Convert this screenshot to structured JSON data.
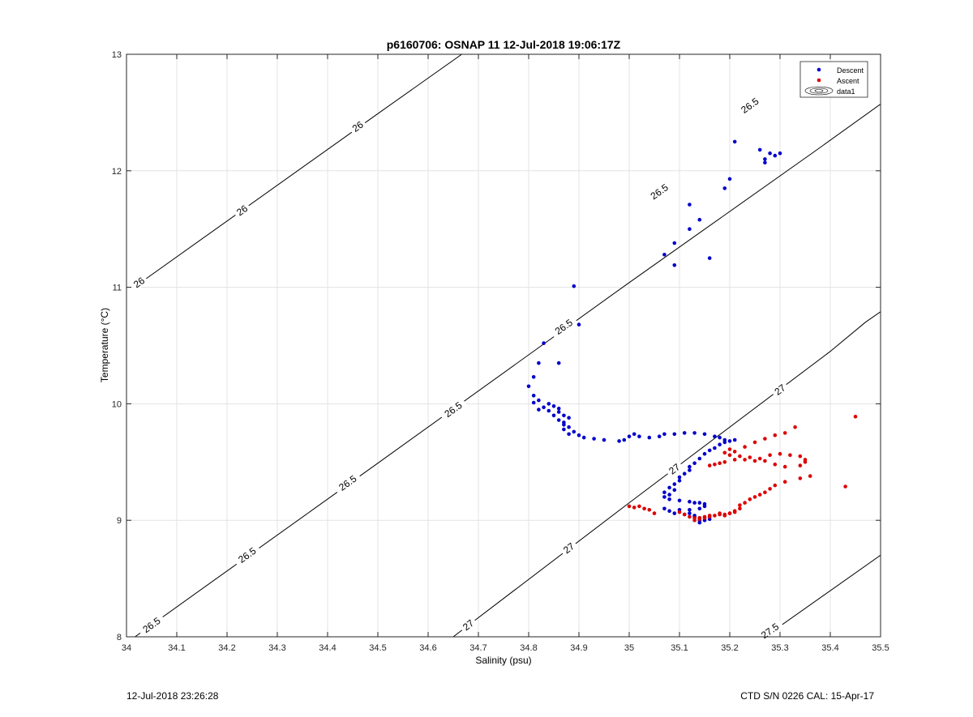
{
  "chart_data": {
    "type": "scatter",
    "title": "p6160706: OSNAP 11 12-Jul-2018 19:06:17Z",
    "xlabel": "Salinity (psu)",
    "ylabel": "Temperature (°C)",
    "xlim": [
      34,
      35.5
    ],
    "ylim": [
      8,
      13
    ],
    "xticks": [
      "34",
      "34.1",
      "34.2",
      "34.3",
      "34.4",
      "34.5",
      "34.6",
      "34.7",
      "34.8",
      "34.9",
      "35",
      "35.1",
      "35.2",
      "35.3",
      "35.4",
      "35.5"
    ],
    "yticks": [
      "8",
      "9",
      "10",
      "11",
      "12",
      "13"
    ],
    "grid": true,
    "legend_position": "top-right",
    "legend": [
      "Descent",
      "Ascent",
      "data1"
    ],
    "series": [
      {
        "name": "Descent",
        "color": "#0000cc",
        "points": [
          [
            35.21,
            12.25
          ],
          [
            35.26,
            12.18
          ],
          [
            35.28,
            12.15
          ],
          [
            35.3,
            12.15
          ],
          [
            35.29,
            12.13
          ],
          [
            35.27,
            12.1
          ],
          [
            35.27,
            12.07
          ],
          [
            35.2,
            11.93
          ],
          [
            35.19,
            11.85
          ],
          [
            35.12,
            11.71
          ],
          [
            35.14,
            11.58
          ],
          [
            35.12,
            11.5
          ],
          [
            35.09,
            11.38
          ],
          [
            35.07,
            11.28
          ],
          [
            35.16,
            11.25
          ],
          [
            35.09,
            11.19
          ],
          [
            34.89,
            11.01
          ],
          [
            34.9,
            10.68
          ],
          [
            34.83,
            10.52
          ],
          [
            34.82,
            10.35
          ],
          [
            34.86,
            10.35
          ],
          [
            34.81,
            10.23
          ],
          [
            34.8,
            10.15
          ],
          [
            34.81,
            10.07
          ],
          [
            34.82,
            10.03
          ],
          [
            34.81,
            10.01
          ],
          [
            34.84,
            10.0
          ],
          [
            34.83,
            9.97
          ],
          [
            34.85,
            9.98
          ],
          [
            34.86,
            9.96
          ],
          [
            34.82,
            9.95
          ],
          [
            34.84,
            9.94
          ],
          [
            34.86,
            9.93
          ],
          [
            34.87,
            9.9
          ],
          [
            34.85,
            9.9
          ],
          [
            34.88,
            9.88
          ],
          [
            34.86,
            9.86
          ],
          [
            34.87,
            9.84
          ],
          [
            34.87,
            9.82
          ],
          [
            34.88,
            9.8
          ],
          [
            34.87,
            9.78
          ],
          [
            34.89,
            9.76
          ],
          [
            34.88,
            9.74
          ],
          [
            34.9,
            9.73
          ],
          [
            34.91,
            9.71
          ],
          [
            34.93,
            9.7
          ],
          [
            34.95,
            9.69
          ],
          [
            34.98,
            9.68
          ],
          [
            34.99,
            9.69
          ],
          [
            35.0,
            9.72
          ],
          [
            35.01,
            9.74
          ],
          [
            35.02,
            9.72
          ],
          [
            35.04,
            9.71
          ],
          [
            35.06,
            9.72
          ],
          [
            35.07,
            9.74
          ],
          [
            35.09,
            9.74
          ],
          [
            35.11,
            9.75
          ],
          [
            35.13,
            9.75
          ],
          [
            35.15,
            9.74
          ],
          [
            35.17,
            9.72
          ],
          [
            35.18,
            9.71
          ],
          [
            35.19,
            9.69
          ],
          [
            35.2,
            9.68
          ],
          [
            35.21,
            9.69
          ],
          [
            35.19,
            9.67
          ],
          [
            35.18,
            9.65
          ],
          [
            35.17,
            9.62
          ],
          [
            35.16,
            9.6
          ],
          [
            35.15,
            9.57
          ],
          [
            35.14,
            9.53
          ],
          [
            35.13,
            9.49
          ],
          [
            35.12,
            9.46
          ],
          [
            35.12,
            9.43
          ],
          [
            35.11,
            9.4
          ],
          [
            35.1,
            9.37
          ],
          [
            35.1,
            9.34
          ],
          [
            35.09,
            9.31
          ],
          [
            35.08,
            9.28
          ],
          [
            35.09,
            9.26
          ],
          [
            35.07,
            9.24
          ],
          [
            35.08,
            9.22
          ],
          [
            35.07,
            9.2
          ],
          [
            35.08,
            9.18
          ],
          [
            35.1,
            9.17
          ],
          [
            35.12,
            9.16
          ],
          [
            35.13,
            9.15
          ],
          [
            35.14,
            9.15
          ],
          [
            35.15,
            9.14
          ],
          [
            35.15,
            9.12
          ],
          [
            35.14,
            9.1
          ],
          [
            35.12,
            9.09
          ],
          [
            35.1,
            9.09
          ],
          [
            35.08,
            9.08
          ],
          [
            35.07,
            9.1
          ],
          [
            35.09,
            9.06
          ],
          [
            35.11,
            9.05
          ],
          [
            35.13,
            9.04
          ],
          [
            35.14,
            9.02
          ],
          [
            35.14,
            9.0
          ],
          [
            35.14,
            8.98
          ],
          [
            35.15,
            9.0
          ],
          [
            35.16,
            9.01
          ],
          [
            35.13,
            9.03
          ],
          [
            35.12,
            9.06
          ]
        ]
      },
      {
        "name": "Ascent",
        "color": "#dd0000",
        "points": [
          [
            35.45,
            9.89
          ],
          [
            35.33,
            9.8
          ],
          [
            35.31,
            9.75
          ],
          [
            35.29,
            9.73
          ],
          [
            35.27,
            9.7
          ],
          [
            35.25,
            9.67
          ],
          [
            35.23,
            9.63
          ],
          [
            35.2,
            9.61
          ],
          [
            35.21,
            9.59
          ],
          [
            35.19,
            9.58
          ],
          [
            35.2,
            9.56
          ],
          [
            35.22,
            9.55
          ],
          [
            35.24,
            9.54
          ],
          [
            35.26,
            9.53
          ],
          [
            35.28,
            9.56
          ],
          [
            35.3,
            9.57
          ],
          [
            35.32,
            9.56
          ],
          [
            35.34,
            9.55
          ],
          [
            35.35,
            9.52
          ],
          [
            35.35,
            9.5
          ],
          [
            35.34,
            9.47
          ],
          [
            35.31,
            9.46
          ],
          [
            35.29,
            9.48
          ],
          [
            35.27,
            9.51
          ],
          [
            35.25,
            9.51
          ],
          [
            35.23,
            9.52
          ],
          [
            35.21,
            9.52
          ],
          [
            35.19,
            9.5
          ],
          [
            35.18,
            9.49
          ],
          [
            35.17,
            9.48
          ],
          [
            35.16,
            9.47
          ],
          [
            35.36,
            9.38
          ],
          [
            35.34,
            9.36
          ],
          [
            35.31,
            9.33
          ],
          [
            35.29,
            9.3
          ],
          [
            35.28,
            9.27
          ],
          [
            35.27,
            9.24
          ],
          [
            35.26,
            9.22
          ],
          [
            35.25,
            9.2
          ],
          [
            35.24,
            9.18
          ],
          [
            35.23,
            9.15
          ],
          [
            35.22,
            9.13
          ],
          [
            35.22,
            9.1
          ],
          [
            35.21,
            9.08
          ],
          [
            35.2,
            9.06
          ],
          [
            35.19,
            9.05
          ],
          [
            35.18,
            9.05
          ],
          [
            35.17,
            9.04
          ],
          [
            35.16,
            9.03
          ],
          [
            35.15,
            9.03
          ],
          [
            35.14,
            9.02
          ],
          [
            35.13,
            9.02
          ],
          [
            35.14,
            9.01
          ],
          [
            35.15,
            9.02
          ],
          [
            35.16,
            9.04
          ],
          [
            35.18,
            9.06
          ],
          [
            35.2,
            9.06
          ],
          [
            35.21,
            9.07
          ],
          [
            35.19,
            9.04
          ],
          [
            35.43,
            9.29
          ],
          [
            35.0,
            9.12
          ],
          [
            35.01,
            9.11
          ],
          [
            35.02,
            9.12
          ],
          [
            35.03,
            9.1
          ],
          [
            35.04,
            9.09
          ],
          [
            35.05,
            9.06
          ],
          [
            35.1,
            9.07
          ],
          [
            35.11,
            9.05
          ],
          [
            35.12,
            9.03
          ],
          [
            35.13,
            9.0
          ]
        ]
      }
    ],
    "contours": [
      {
        "label": "26",
        "points": [
          [
            34.015,
            11.0
          ],
          [
            34.5,
            12.49
          ],
          [
            34.667,
            13.0
          ]
        ],
        "label_positions": [
          [
            34.025,
            11.04
          ],
          [
            34.23,
            11.66
          ],
          [
            34.46,
            12.38
          ]
        ]
      },
      {
        "label": "26.5",
        "points": [
          [
            34.017,
            8.0
          ],
          [
            34.5,
            9.49
          ],
          [
            35.0,
            11.04
          ],
          [
            35.37,
            12.17
          ],
          [
            35.638,
            13.0
          ]
        ],
        "label_positions": [
          [
            34.05,
            8.1
          ],
          [
            34.24,
            8.7
          ],
          [
            34.44,
            9.32
          ],
          [
            34.65,
            9.95
          ],
          [
            34.87,
            10.66
          ],
          [
            35.06,
            11.82
          ],
          [
            35.24,
            12.56
          ]
        ]
      },
      {
        "label": "27",
        "points": [
          [
            34.65,
            8.0
          ],
          [
            35.0,
            9.15
          ],
          [
            35.4,
            10.45
          ],
          [
            35.47,
            10.7
          ],
          [
            35.5,
            10.79
          ]
        ],
        "label_positions": [
          [
            34.68,
            8.1
          ],
          [
            34.88,
            8.76
          ],
          [
            35.09,
            9.44
          ],
          [
            35.3,
            10.12
          ]
        ]
      },
      {
        "label": "27.5",
        "points": [
          [
            35.27,
            8.0
          ],
          [
            35.5,
            8.7
          ]
        ],
        "label_positions": [
          [
            35.28,
            8.05
          ]
        ]
      }
    ]
  },
  "footer": {
    "left": "12-Jul-2018 23:26:28",
    "right": "CTD S/N 0226  CAL: 15-Apr-17"
  }
}
